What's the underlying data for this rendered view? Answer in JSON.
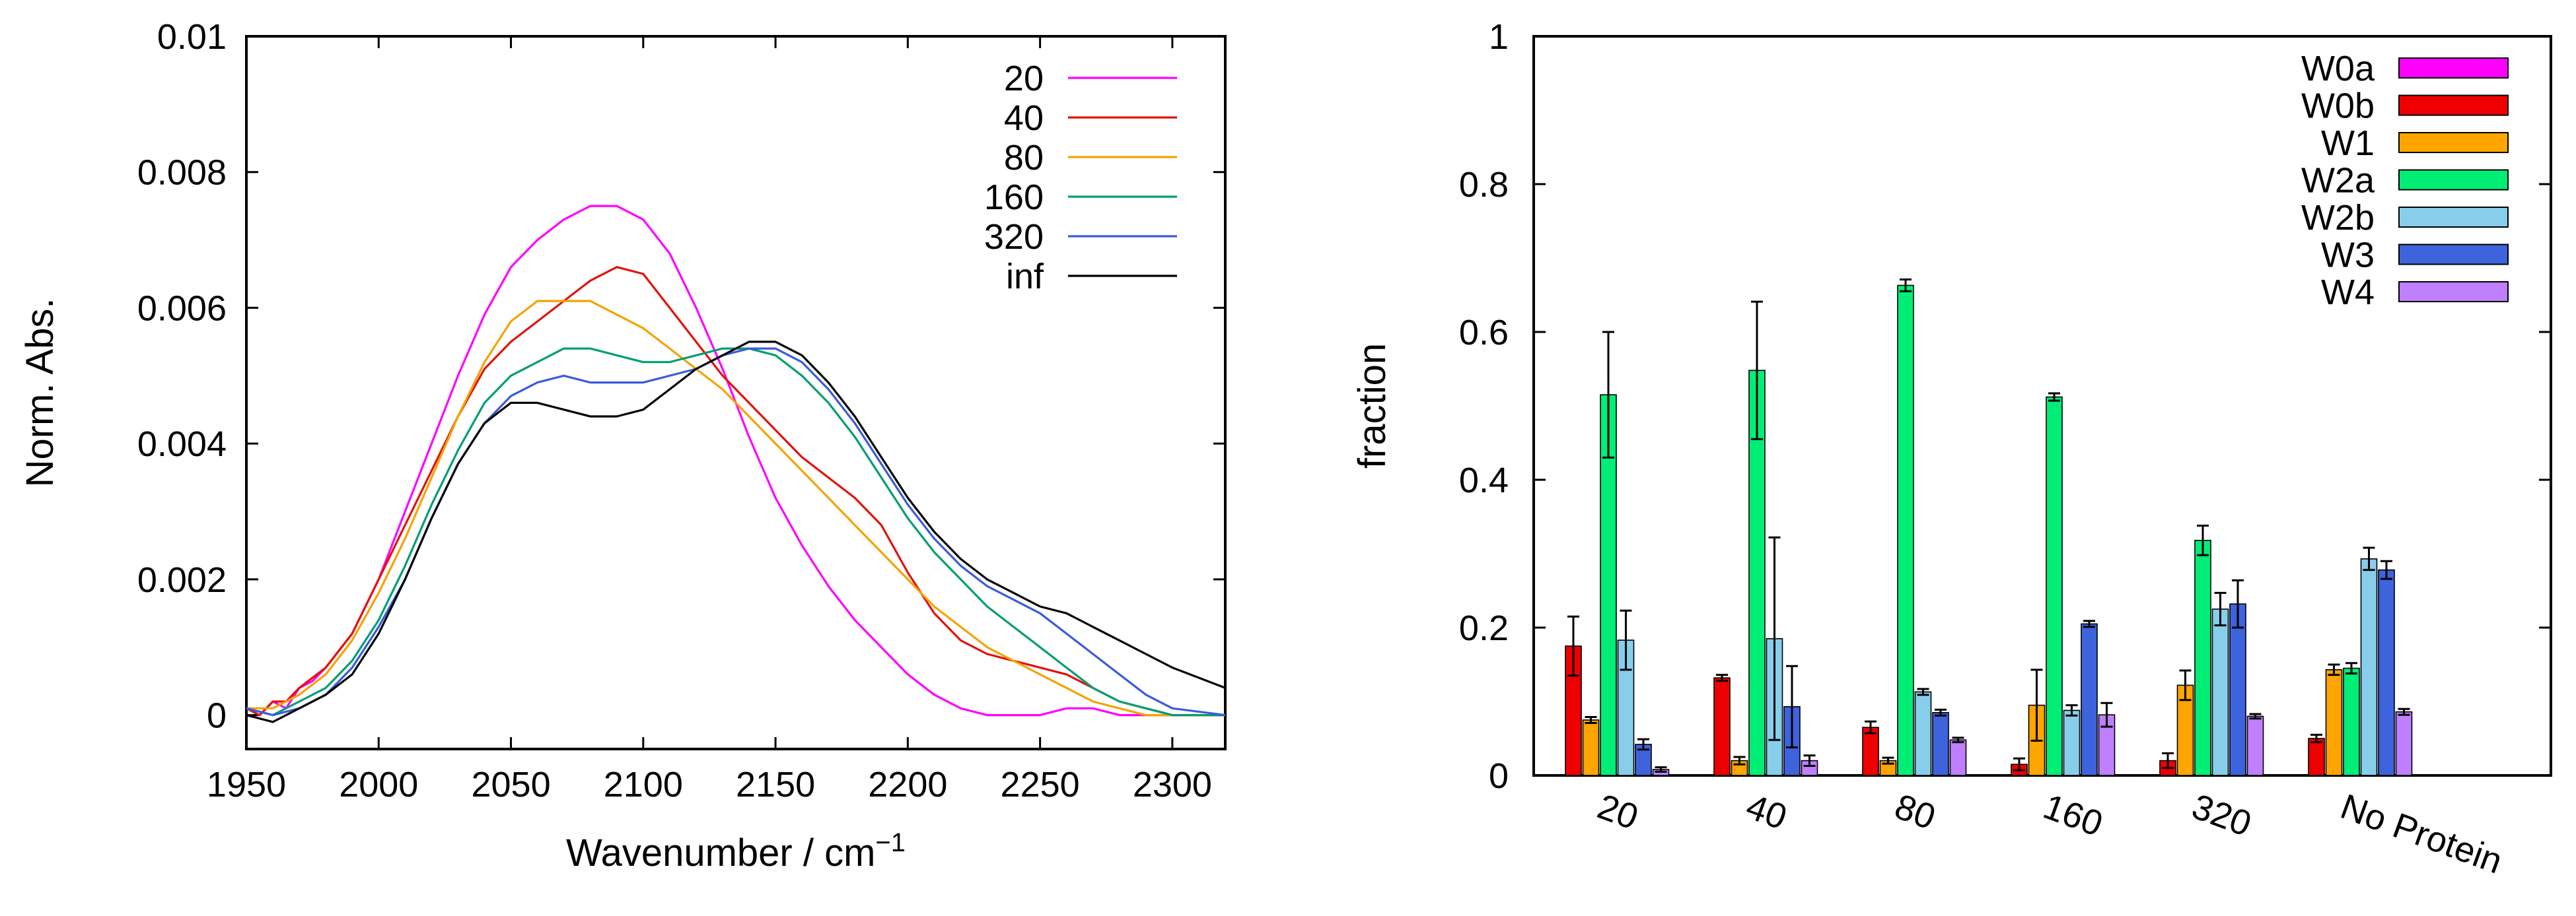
{
  "chart_data": [
    {
      "type": "line",
      "title": "",
      "xlabel": "Wavenumber / cm",
      "xlabel_superscript": "−1",
      "ylabel": "Norm. Abs.",
      "xlim": [
        1950,
        2320
      ],
      "ylim": [
        -0.0005,
        0.01
      ],
      "xticks": [
        1950,
        2000,
        2050,
        2100,
        2150,
        2200,
        2250,
        2300
      ],
      "yticks": [
        0,
        0.002,
        0.004,
        0.006,
        0.008,
        0.01
      ],
      "ytick_labels": [
        "0",
        "0.002",
        "0.004",
        "0.006",
        "0.008",
        "0.01"
      ],
      "legend_position": "top-right",
      "series": [
        {
          "name": "20",
          "color": "#ff00ff",
          "x": [
            1950,
            1955,
            1960,
            1965,
            1970,
            1975,
            1980,
            1990,
            2000,
            2010,
            2020,
            2030,
            2040,
            2050,
            2060,
            2070,
            2080,
            2090,
            2100,
            2110,
            2120,
            2130,
            2140,
            2150,
            2160,
            2170,
            2180,
            2190,
            2200,
            2210,
            2220,
            2230,
            2240,
            2250,
            2260,
            2270,
            2280,
            2290,
            2300,
            2320
          ],
          "y": [
            0.0001,
            0.0,
            0.0002,
            0.0001,
            0.0004,
            0.0005,
            0.0007,
            0.0012,
            0.002,
            0.003,
            0.004,
            0.005,
            0.0059,
            0.0066,
            0.007,
            0.0073,
            0.0075,
            0.0075,
            0.0073,
            0.0068,
            0.006,
            0.0051,
            0.0041,
            0.0032,
            0.0025,
            0.0019,
            0.0014,
            0.001,
            0.0006,
            0.0003,
            0.0001,
            0.0,
            0.0,
            0.0,
            0.0001,
            0.0001,
            0.0,
            0.0,
            0.0,
            0.0
          ]
        },
        {
          "name": "40",
          "color": "#e3120b",
          "x": [
            1950,
            1955,
            1960,
            1965,
            1970,
            1980,
            1990,
            2000,
            2010,
            2020,
            2030,
            2040,
            2050,
            2060,
            2070,
            2080,
            2090,
            2100,
            2110,
            2120,
            2130,
            2140,
            2150,
            2160,
            2170,
            2180,
            2190,
            2200,
            2210,
            2220,
            2230,
            2240,
            2250,
            2260,
            2270,
            2280,
            2290,
            2300,
            2320
          ],
          "y": [
            0.0001,
            0.0,
            0.0002,
            0.0002,
            0.0004,
            0.0007,
            0.0012,
            0.002,
            0.0028,
            0.0036,
            0.0044,
            0.0051,
            0.0055,
            0.0058,
            0.0061,
            0.0064,
            0.0066,
            0.0065,
            0.006,
            0.0055,
            0.005,
            0.0046,
            0.0042,
            0.0038,
            0.0035,
            0.0032,
            0.0028,
            0.0021,
            0.0015,
            0.0011,
            0.0009,
            0.0008,
            0.0007,
            0.0006,
            0.0004,
            0.0002,
            0.0001,
            0.0,
            0.0
          ]
        },
        {
          "name": "80",
          "color": "#f4a300",
          "x": [
            1950,
            1960,
            1970,
            1980,
            1990,
            2000,
            2010,
            2020,
            2030,
            2040,
            2050,
            2060,
            2070,
            2080,
            2090,
            2100,
            2110,
            2120,
            2130,
            2140,
            2150,
            2160,
            2170,
            2180,
            2190,
            2200,
            2210,
            2220,
            2230,
            2240,
            2250,
            2260,
            2270,
            2280,
            2290,
            2300,
            2320
          ],
          "y": [
            0.0001,
            0.0001,
            0.0003,
            0.0006,
            0.0011,
            0.0018,
            0.0026,
            0.0035,
            0.0044,
            0.0052,
            0.0058,
            0.0061,
            0.0061,
            0.0061,
            0.0059,
            0.0057,
            0.0054,
            0.0051,
            0.0048,
            0.0044,
            0.004,
            0.0036,
            0.0032,
            0.0028,
            0.0024,
            0.002,
            0.0016,
            0.0013,
            0.001,
            0.0008,
            0.0006,
            0.0004,
            0.0002,
            0.0001,
            0.0,
            0.0,
            0.0
          ]
        },
        {
          "name": "160",
          "color": "#009e73",
          "x": [
            1950,
            1960,
            1970,
            1980,
            1990,
            2000,
            2010,
            2020,
            2030,
            2040,
            2050,
            2060,
            2070,
            2080,
            2090,
            2100,
            2110,
            2120,
            2130,
            2140,
            2150,
            2160,
            2170,
            2180,
            2190,
            2200,
            2210,
            2220,
            2230,
            2240,
            2250,
            2260,
            2270,
            2280,
            2290,
            2300,
            2320
          ],
          "y": [
            0.0001,
            0.0,
            0.0002,
            0.0004,
            0.0008,
            0.0014,
            0.0022,
            0.0031,
            0.0039,
            0.0046,
            0.005,
            0.0052,
            0.0054,
            0.0054,
            0.0053,
            0.0052,
            0.0052,
            0.0053,
            0.0054,
            0.0054,
            0.0053,
            0.005,
            0.0046,
            0.0041,
            0.0035,
            0.0029,
            0.0024,
            0.002,
            0.0016,
            0.0013,
            0.001,
            0.0007,
            0.0004,
            0.0002,
            0.0001,
            0.0,
            0.0
          ]
        },
        {
          "name": "320",
          "color": "#3b5bdb",
          "x": [
            1950,
            1960,
            1970,
            1980,
            1990,
            2000,
            2010,
            2020,
            2030,
            2040,
            2050,
            2060,
            2070,
            2080,
            2090,
            2100,
            2110,
            2120,
            2130,
            2140,
            2150,
            2160,
            2170,
            2180,
            2190,
            2200,
            2210,
            2220,
            2230,
            2240,
            2250,
            2260,
            2270,
            2280,
            2290,
            2300,
            2320
          ],
          "y": [
            0.0001,
            0.0,
            0.0001,
            0.0003,
            0.0007,
            0.0013,
            0.002,
            0.0029,
            0.0037,
            0.0043,
            0.0047,
            0.0049,
            0.005,
            0.0049,
            0.0049,
            0.0049,
            0.005,
            0.0051,
            0.0053,
            0.0054,
            0.0054,
            0.0052,
            0.0048,
            0.0043,
            0.0037,
            0.0031,
            0.0026,
            0.0022,
            0.0019,
            0.0017,
            0.0015,
            0.0012,
            0.0009,
            0.0006,
            0.0003,
            0.0001,
            0.0
          ]
        },
        {
          "name": "inf",
          "color": "#000000",
          "x": [
            1950,
            1960,
            1970,
            1980,
            1990,
            2000,
            2010,
            2020,
            2030,
            2040,
            2050,
            2060,
            2070,
            2080,
            2090,
            2100,
            2110,
            2120,
            2130,
            2140,
            2150,
            2160,
            2170,
            2180,
            2190,
            2200,
            2210,
            2220,
            2230,
            2240,
            2250,
            2260,
            2270,
            2280,
            2290,
            2300,
            2320
          ],
          "y": [
            0.0,
            -0.0001,
            0.0001,
            0.0003,
            0.0006,
            0.0012,
            0.002,
            0.0029,
            0.0037,
            0.0043,
            0.0046,
            0.0046,
            0.0045,
            0.0044,
            0.0044,
            0.0045,
            0.0048,
            0.0051,
            0.0053,
            0.0055,
            0.0055,
            0.0053,
            0.0049,
            0.0044,
            0.0038,
            0.0032,
            0.0027,
            0.0023,
            0.002,
            0.0018,
            0.0016,
            0.0015,
            0.0013,
            0.0011,
            0.0009,
            0.0007,
            0.0004
          ]
        }
      ]
    },
    {
      "type": "bar",
      "title": "",
      "xlabel": "",
      "ylabel": "fraction",
      "ylim": [
        0,
        1
      ],
      "yticks": [
        0,
        0.2,
        0.4,
        0.6,
        0.8,
        1
      ],
      "ytick_labels": [
        "0",
        "0.2",
        "0.4",
        "0.6",
        "0.8",
        "1"
      ],
      "categories": [
        "20",
        "40",
        "80",
        "160",
        "320",
        "No Protein"
      ],
      "legend_position": "top-right",
      "series": [
        {
          "name": "W0a",
          "color": "#ff00ff",
          "values": [
            0,
            0,
            0,
            0,
            0,
            0
          ],
          "errors": [
            0,
            0,
            0,
            0,
            0,
            0
          ]
        },
        {
          "name": "W0b",
          "color": "#ee0000",
          "values": [
            0.175,
            0.132,
            0.065,
            0.015,
            0.02,
            0.05
          ],
          "errors": [
            0.04,
            0.004,
            0.008,
            0.008,
            0.01,
            0.005
          ]
        },
        {
          "name": "W1",
          "color": "#ffa500",
          "values": [
            0.075,
            0.02,
            0.02,
            0.095,
            0.122,
            0.143
          ],
          "errors": [
            0.004,
            0.005,
            0.004,
            0.048,
            0.02,
            0.007
          ]
        },
        {
          "name": "W2a",
          "color": "#00ee76",
          "values": [
            0.515,
            0.548,
            0.663,
            0.512,
            0.318,
            0.145
          ],
          "errors": [
            0.085,
            0.093,
            0.008,
            0.005,
            0.02,
            0.007
          ]
        },
        {
          "name": "W2b",
          "color": "#87ceeb",
          "values": [
            0.183,
            0.185,
            0.113,
            0.088,
            0.225,
            0.293
          ],
          "errors": [
            0.04,
            0.137,
            0.004,
            0.007,
            0.022,
            0.015
          ]
        },
        {
          "name": "W3",
          "color": "#3d63dd",
          "values": [
            0.042,
            0.093,
            0.085,
            0.205,
            0.232,
            0.278
          ],
          "errors": [
            0.007,
            0.055,
            0.004,
            0.004,
            0.032,
            0.012
          ]
        },
        {
          "name": "W4",
          "color": "#bf7fff",
          "values": [
            0.008,
            0.02,
            0.048,
            0.082,
            0.08,
            0.086
          ],
          "errors": [
            0.003,
            0.007,
            0.003,
            0.016,
            0.003,
            0.004
          ]
        }
      ]
    }
  ]
}
